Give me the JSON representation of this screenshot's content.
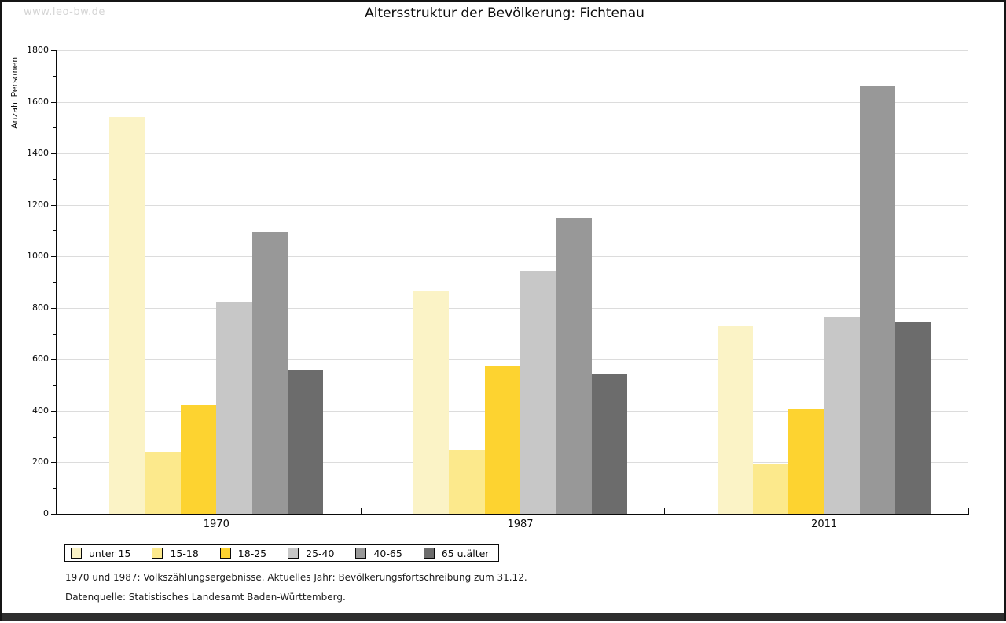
{
  "page": {
    "watermark": "www.leo-bw.de",
    "title": "Altersstruktur der Bevölkerung: Fichtenau",
    "footnotes": [
      "1970 und 1987: Volkszählungsergebnisse. Aktuelles Jahr: Bevölkerungsfortschreibung zum 31.12.",
      "Datenquelle: Statistisches Landesamt Baden-Württemberg."
    ]
  },
  "chart_data": {
    "type": "bar",
    "title": "Altersstruktur der Bevölkerung: Fichtenau",
    "ylabel": "Anzahl Personen",
    "xlabel": "",
    "categories": [
      "1970",
      "1987",
      "2011"
    ],
    "series": [
      {
        "name": "unter 15",
        "color": "#FBF3C6",
        "values": [
          1540,
          865,
          730
        ]
      },
      {
        "name": "15-18",
        "color": "#FCE98C",
        "values": [
          240,
          247,
          192
        ]
      },
      {
        "name": "18-25",
        "color": "#FDD330",
        "values": [
          425,
          574,
          406
        ]
      },
      {
        "name": "25-40",
        "color": "#C7C7C7",
        "values": [
          820,
          944,
          762
        ]
      },
      {
        "name": "40-65",
        "color": "#989898",
        "values": [
          1096,
          1146,
          1662
        ]
      },
      {
        "name": "65 u.älter",
        "color": "#6C6C6C",
        "values": [
          557,
          542,
          746
        ]
      }
    ],
    "ylim": [
      0,
      1800
    ],
    "ytick_step": 200,
    "yminor_step": 100,
    "grid": true,
    "legend_position": "bottom-left",
    "axis_color": "#0a0a0a",
    "gridline_color": "#dcdcdc"
  }
}
